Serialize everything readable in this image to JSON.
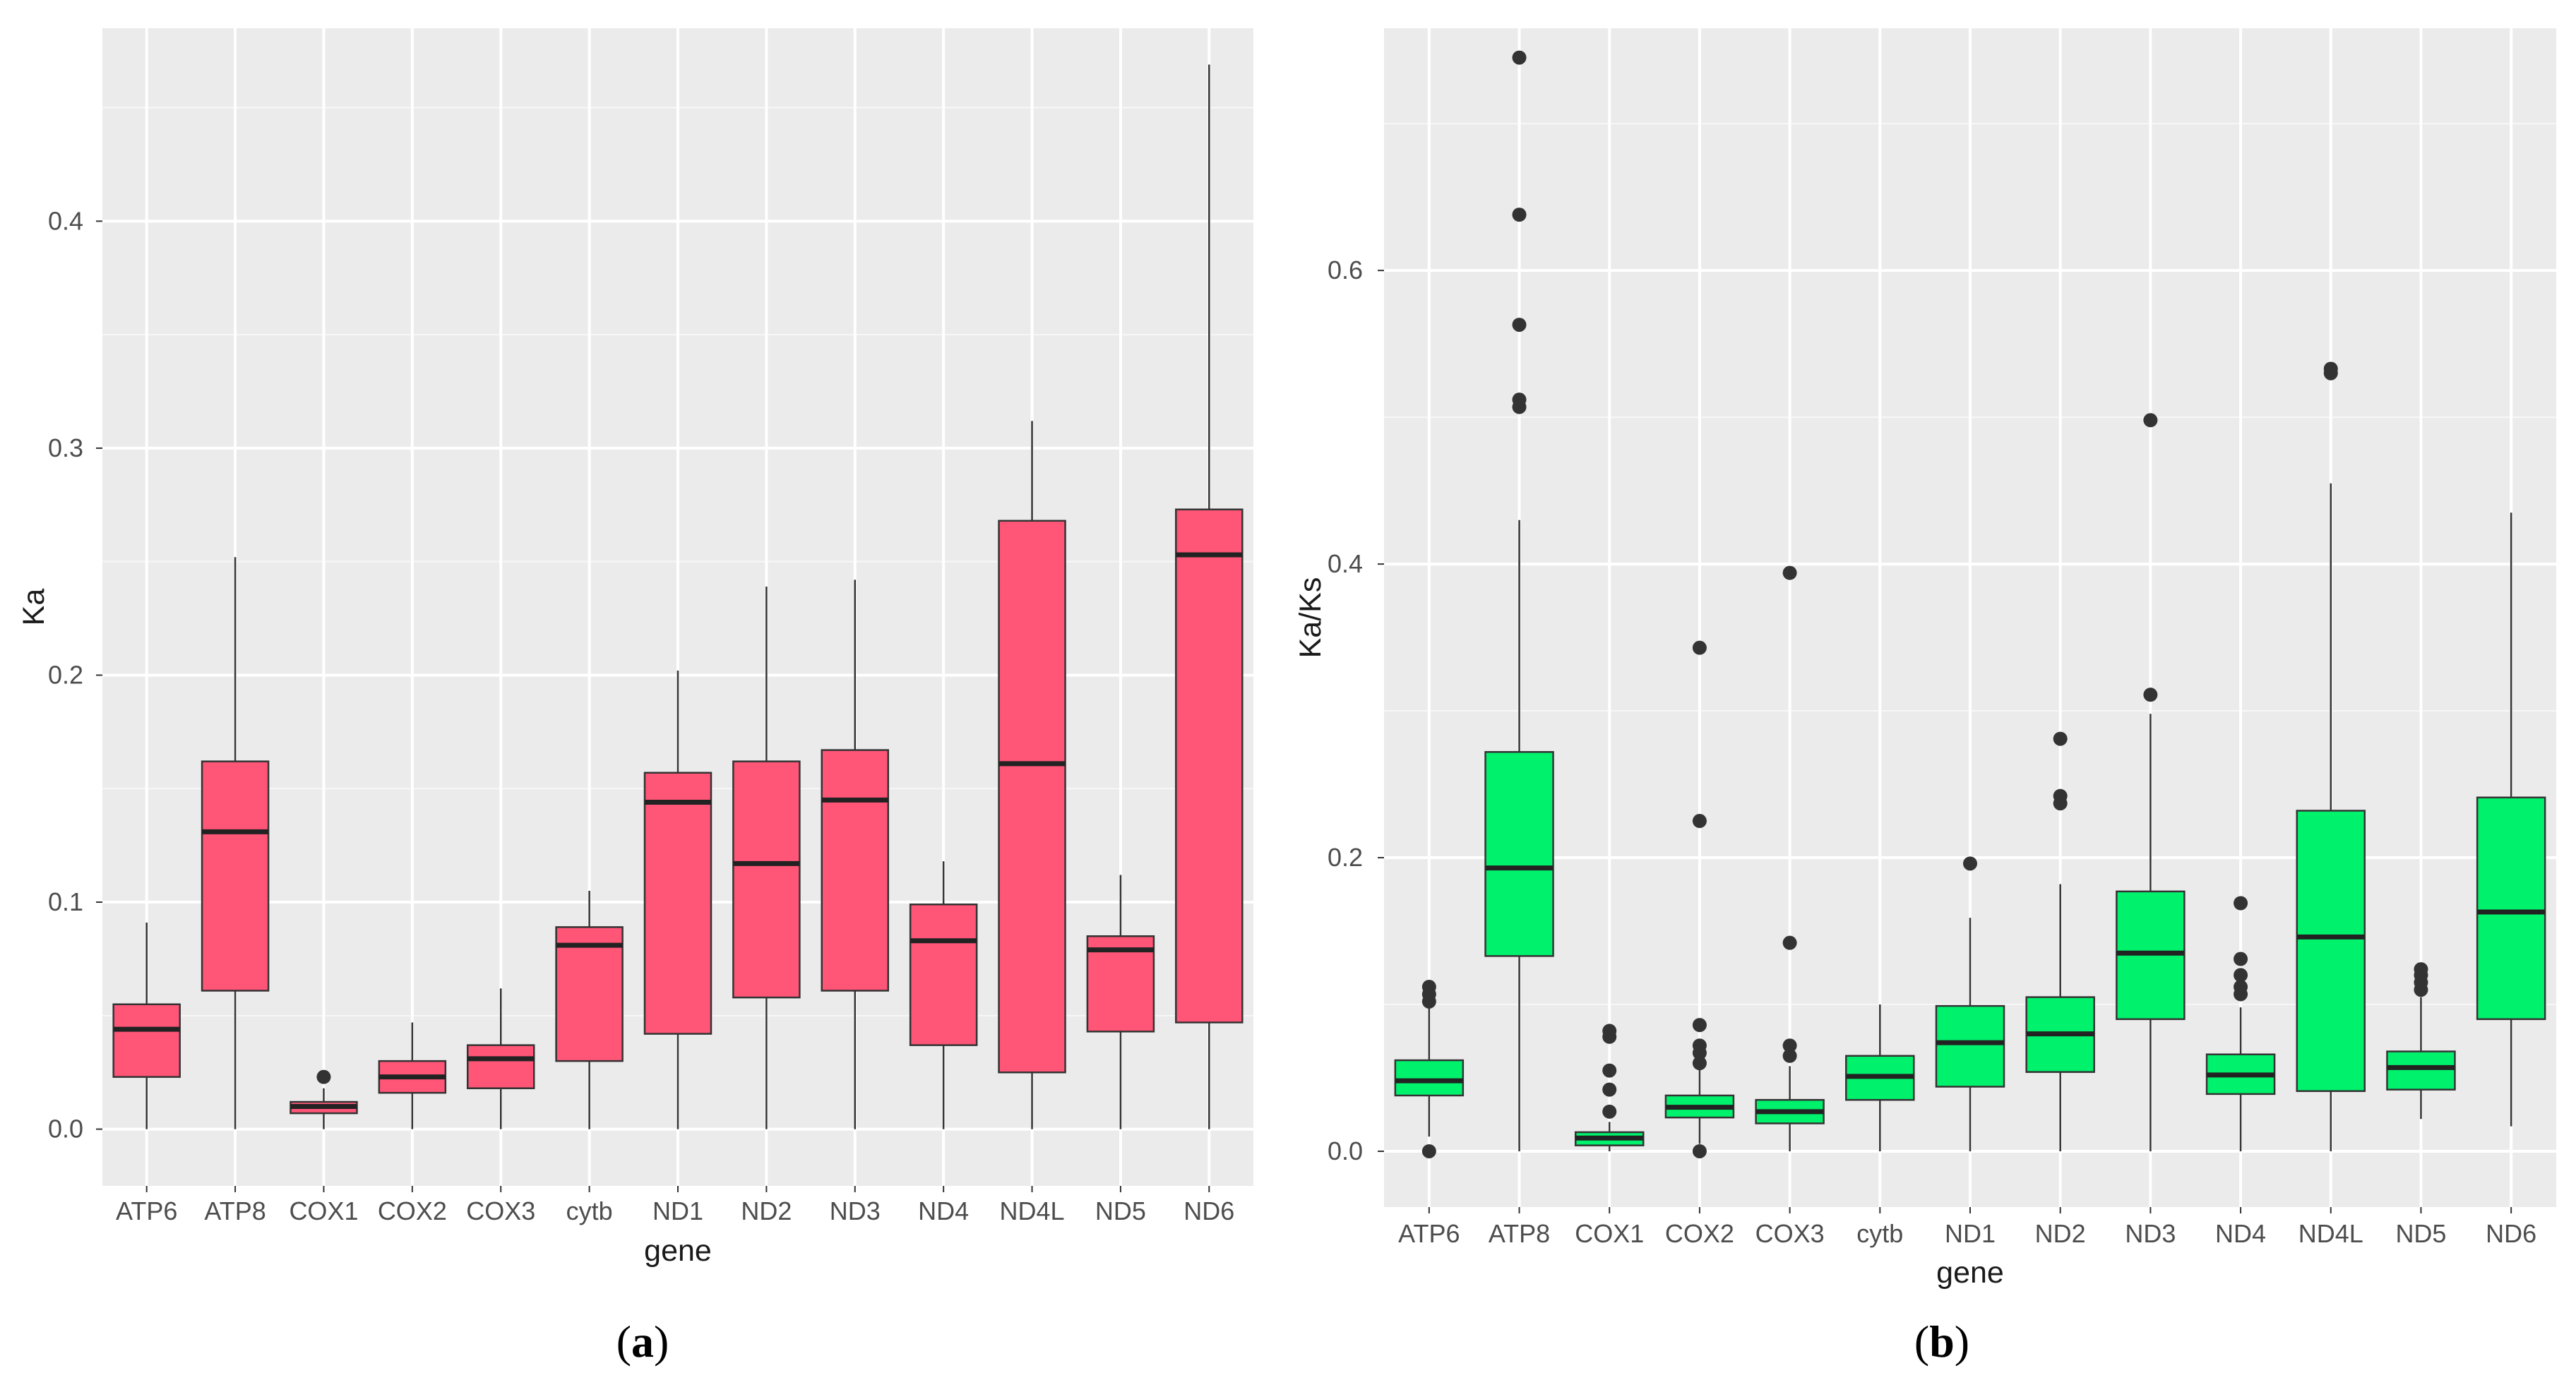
{
  "chart_data": [
    {
      "type": "box",
      "panel_label": {
        "open": "(",
        "letter": "a",
        "close": ")"
      },
      "title": "",
      "xlabel": "gene",
      "ylabel": "Ka",
      "ylim": [
        -0.025,
        0.485
      ],
      "yticks": [
        0.0,
        0.1,
        0.2,
        0.3,
        0.4
      ],
      "ytick_labels": [
        "0.0",
        "0.1",
        "0.2",
        "0.3",
        "0.4"
      ],
      "fill_color": "#ff5577",
      "categories": [
        "ATP6",
        "ATP8",
        "COX1",
        "COX2",
        "COX3",
        "cytb",
        "ND1",
        "ND2",
        "ND3",
        "ND4",
        "ND4L",
        "ND5",
        "ND6"
      ],
      "boxes": [
        {
          "gene": "ATP6",
          "min": 0.0,
          "q1": 0.023,
          "median": 0.044,
          "q3": 0.055,
          "max": 0.091,
          "outliers": []
        },
        {
          "gene": "ATP8",
          "min": 0.0,
          "q1": 0.061,
          "median": 0.131,
          "q3": 0.162,
          "max": 0.252,
          "outliers": []
        },
        {
          "gene": "COX1",
          "min": 0.0,
          "q1": 0.007,
          "median": 0.01,
          "q3": 0.012,
          "max": 0.018,
          "outliers": [
            0.023
          ]
        },
        {
          "gene": "COX2",
          "min": 0.0,
          "q1": 0.016,
          "median": 0.023,
          "q3": 0.03,
          "max": 0.047,
          "outliers": []
        },
        {
          "gene": "COX3",
          "min": 0.0,
          "q1": 0.018,
          "median": 0.031,
          "q3": 0.037,
          "max": 0.062,
          "outliers": []
        },
        {
          "gene": "cytb",
          "min": 0.0,
          "q1": 0.03,
          "median": 0.081,
          "q3": 0.089,
          "max": 0.105,
          "outliers": []
        },
        {
          "gene": "ND1",
          "min": 0.0,
          "q1": 0.042,
          "median": 0.144,
          "q3": 0.157,
          "max": 0.202,
          "outliers": []
        },
        {
          "gene": "ND2",
          "min": 0.0,
          "q1": 0.058,
          "median": 0.117,
          "q3": 0.162,
          "max": 0.239,
          "outliers": []
        },
        {
          "gene": "ND3",
          "min": 0.0,
          "q1": 0.061,
          "median": 0.145,
          "q3": 0.167,
          "max": 0.242,
          "outliers": []
        },
        {
          "gene": "ND4",
          "min": 0.0,
          "q1": 0.037,
          "median": 0.083,
          "q3": 0.099,
          "max": 0.118,
          "outliers": []
        },
        {
          "gene": "ND4L",
          "min": 0.0,
          "q1": 0.025,
          "median": 0.161,
          "q3": 0.268,
          "max": 0.312,
          "outliers": []
        },
        {
          "gene": "ND5",
          "min": 0.0,
          "q1": 0.043,
          "median": 0.079,
          "q3": 0.085,
          "max": 0.112,
          "outliers": []
        },
        {
          "gene": "ND6",
          "min": 0.0,
          "q1": 0.047,
          "median": 0.253,
          "q3": 0.273,
          "max": 0.469,
          "outliers": []
        }
      ]
    },
    {
      "type": "box",
      "panel_label": {
        "open": "(",
        "letter": "b",
        "close": ")"
      },
      "title": "",
      "xlabel": "gene",
      "ylabel": "Ka/Ks",
      "ylim": [
        -0.038,
        0.765
      ],
      "yticks": [
        0.0,
        0.2,
        0.4,
        0.6
      ],
      "ytick_labels": [
        "0.0",
        "0.2",
        "0.4",
        "0.6"
      ],
      "fill_color": "#00f26d",
      "categories": [
        "ATP6",
        "ATP8",
        "COX1",
        "COX2",
        "COX3",
        "cytb",
        "ND1",
        "ND2",
        "ND3",
        "ND4",
        "ND4L",
        "ND5",
        "ND6"
      ],
      "boxes": [
        {
          "gene": "ATP6",
          "min": 0.01,
          "q1": 0.038,
          "median": 0.048,
          "q3": 0.062,
          "max": 0.098,
          "outliers": [
            0.0,
            0.102,
            0.107,
            0.112
          ]
        },
        {
          "gene": "ATP8",
          "min": 0.0,
          "q1": 0.133,
          "median": 0.193,
          "q3": 0.272,
          "max": 0.43,
          "outliers": [
            0.507,
            0.512,
            0.563,
            0.638,
            0.745
          ]
        },
        {
          "gene": "COX1",
          "min": 0.0,
          "q1": 0.004,
          "median": 0.009,
          "q3": 0.013,
          "max": 0.02,
          "outliers": [
            0.027,
            0.042,
            0.055,
            0.078,
            0.082
          ]
        },
        {
          "gene": "COX2",
          "min": 0.005,
          "q1": 0.023,
          "median": 0.03,
          "q3": 0.038,
          "max": 0.057,
          "outliers": [
            0.0,
            0.06,
            0.067,
            0.072,
            0.086,
            0.225,
            0.343
          ]
        },
        {
          "gene": "COX3",
          "min": 0.0,
          "q1": 0.019,
          "median": 0.027,
          "q3": 0.035,
          "max": 0.058,
          "outliers": [
            0.065,
            0.072,
            0.142,
            0.394
          ]
        },
        {
          "gene": "cytb",
          "min": 0.0,
          "q1": 0.035,
          "median": 0.051,
          "q3": 0.065,
          "max": 0.1,
          "outliers": []
        },
        {
          "gene": "ND1",
          "min": 0.0,
          "q1": 0.044,
          "median": 0.074,
          "q3": 0.099,
          "max": 0.159,
          "outliers": [
            0.196
          ]
        },
        {
          "gene": "ND2",
          "min": 0.0,
          "q1": 0.054,
          "median": 0.08,
          "q3": 0.105,
          "max": 0.182,
          "outliers": [
            0.237,
            0.242,
            0.281
          ]
        },
        {
          "gene": "ND3",
          "min": 0.0,
          "q1": 0.09,
          "median": 0.135,
          "q3": 0.177,
          "max": 0.298,
          "outliers": [
            0.311,
            0.498
          ]
        },
        {
          "gene": "ND4",
          "min": 0.0,
          "q1": 0.039,
          "median": 0.052,
          "q3": 0.066,
          "max": 0.098,
          "outliers": [
            0.107,
            0.112,
            0.12,
            0.131,
            0.169
          ]
        },
        {
          "gene": "ND4L",
          "min": 0.0,
          "q1": 0.041,
          "median": 0.146,
          "q3": 0.232,
          "max": 0.455,
          "outliers": [
            0.53,
            0.533
          ]
        },
        {
          "gene": "ND5",
          "min": 0.022,
          "q1": 0.042,
          "median": 0.057,
          "q3": 0.068,
          "max": 0.105,
          "outliers": [
            0.11,
            0.115,
            0.12,
            0.124
          ]
        },
        {
          "gene": "ND6",
          "min": 0.017,
          "q1": 0.09,
          "median": 0.163,
          "q3": 0.241,
          "max": 0.435,
          "outliers": []
        }
      ]
    }
  ]
}
